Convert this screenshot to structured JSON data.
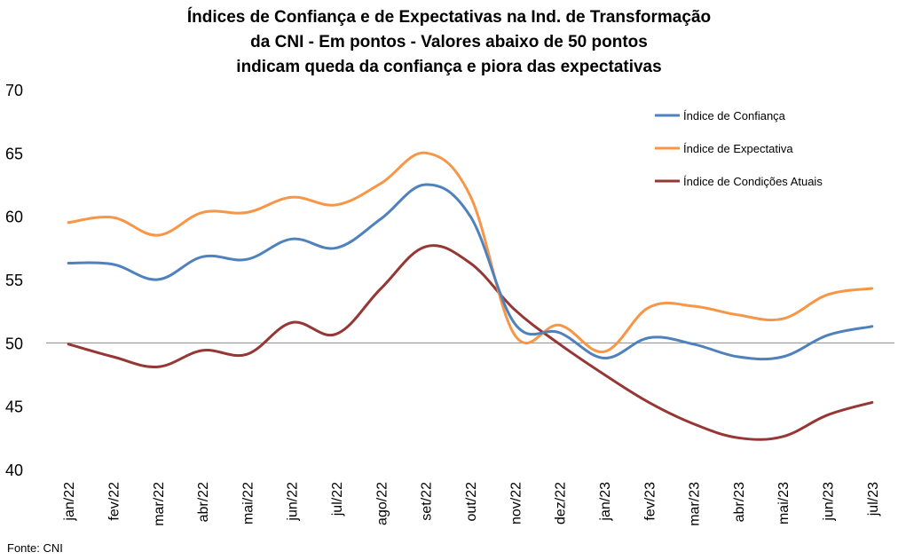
{
  "chart_data": {
    "type": "line",
    "title": [
      "Índices de Confiança e de Expectativas na Ind. de Transformação",
      "da CNI - Em pontos - Valores abaixo de 50 pontos",
      "indicam queda da confiança e piora das expectativas"
    ],
    "categories": [
      "jan/22",
      "fev/22",
      "mar/22",
      "abr/22",
      "mai/22",
      "jun/22",
      "jul/22",
      "ago/22",
      "set/22",
      "out/22",
      "nov/22",
      "dez/22",
      "jan/23",
      "fev/23",
      "mar/23",
      "abr/23",
      "mai/23",
      "jun/23",
      "jul/23"
    ],
    "ylim": [
      40,
      70
    ],
    "yticks": [
      "40",
      "45",
      "50",
      "55",
      "60",
      "65",
      "70"
    ],
    "reference_line": 50,
    "legend_position": "top-right",
    "series": [
      {
        "name": "Índice de Confiança",
        "color": "#4f81bd",
        "values": [
          56.3,
          56.2,
          55.0,
          56.8,
          56.6,
          58.2,
          57.5,
          59.8,
          62.5,
          60.0,
          51.5,
          50.8,
          48.8,
          50.4,
          49.9,
          48.9,
          48.9,
          50.6,
          51.3
        ]
      },
      {
        "name": "Índice de Expectativa",
        "color": "#f79646",
        "values": [
          59.5,
          59.9,
          58.5,
          60.3,
          60.3,
          61.5,
          60.9,
          62.6,
          65.0,
          61.6,
          50.6,
          51.4,
          49.3,
          52.8,
          52.9,
          52.2,
          51.9,
          53.8,
          54.3
        ]
      },
      {
        "name": "Índice de Condições Atuais",
        "color": "#953735",
        "values": [
          49.9,
          48.9,
          48.1,
          49.4,
          49.1,
          51.6,
          50.7,
          54.3,
          57.6,
          56.3,
          52.6,
          49.9,
          47.5,
          45.3,
          43.6,
          42.5,
          42.6,
          44.3,
          45.3
        ]
      }
    ],
    "source": "Fonte: CNI"
  }
}
